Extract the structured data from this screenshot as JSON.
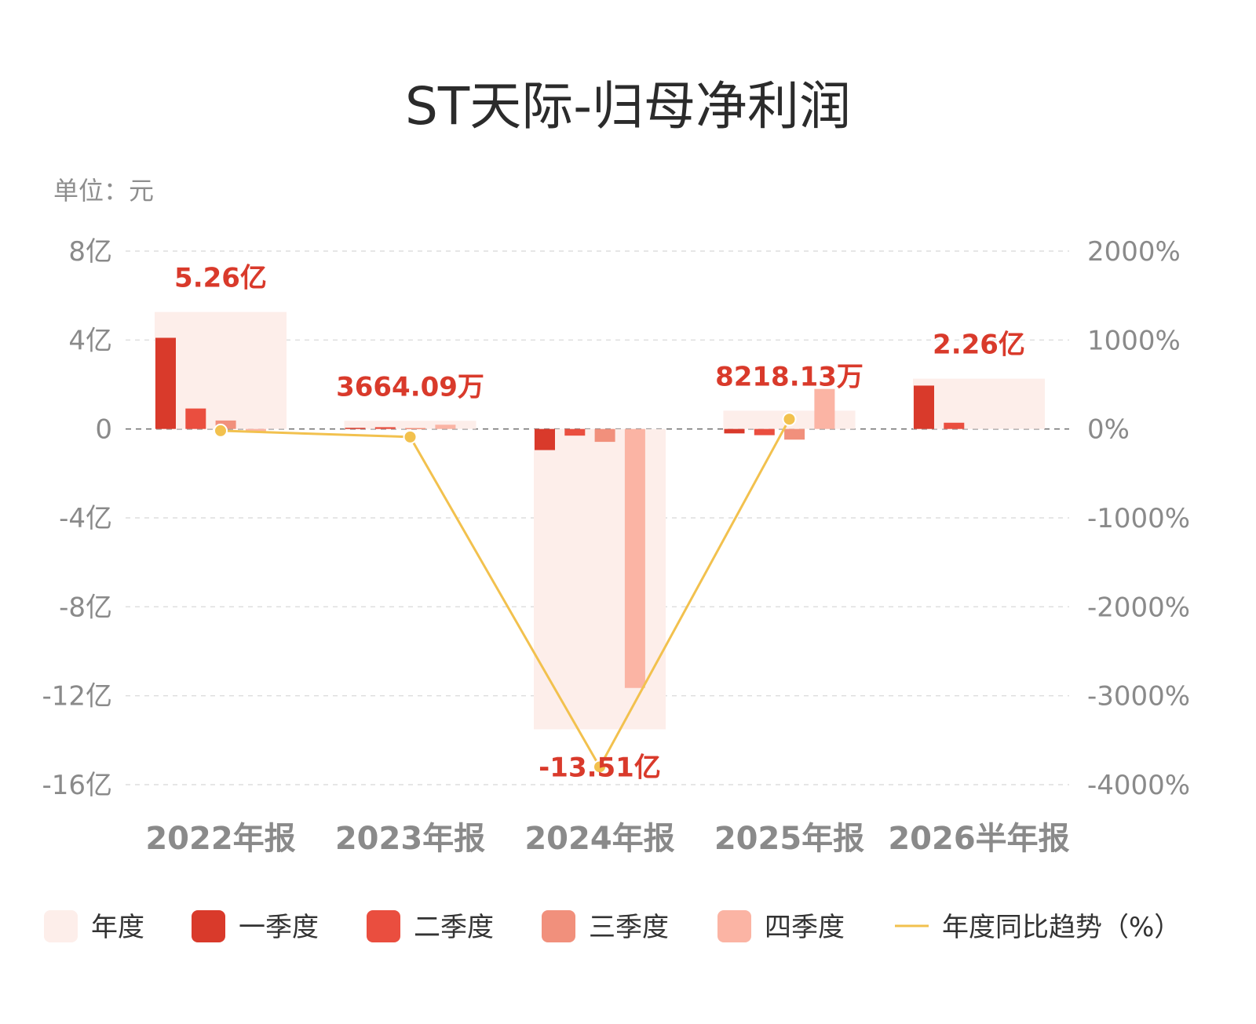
{
  "title": "ST天际-归母净利润",
  "unit_label": "单位：元",
  "chart_data": {
    "type": "bar",
    "title": "ST天际-归母净利润",
    "categories": [
      "2022年报",
      "2023年报",
      "2024年报",
      "2025年报",
      "2026半年报"
    ],
    "annual_labels": [
      "5.26亿",
      "3664.09万",
      "-13.51亿",
      "8218.13万",
      "2.26亿"
    ],
    "series": [
      {
        "name": "年度",
        "color": "#fdeeea",
        "values": [
          526000000,
          36640900,
          -1351000000,
          82181300,
          226000000
        ]
      },
      {
        "name": "一季度",
        "color": "#d93a2b",
        "values": [
          410000000,
          5000000,
          -95000000,
          -20000000,
          195000000
        ]
      },
      {
        "name": "二季度",
        "color": "#ea4e3f",
        "values": [
          92000000,
          8000000,
          -30000000,
          -28000000,
          28000000
        ]
      },
      {
        "name": "三季度",
        "color": "#f1907c",
        "values": [
          38000000,
          4000000,
          -58000000,
          -48000000,
          null
        ]
      },
      {
        "name": "四季度",
        "color": "#fbb4a4",
        "values": [
          -14000000,
          19000000,
          -1165000000,
          180000000,
          null
        ]
      }
    ],
    "line": {
      "name": "年度同比趋势（%）",
      "color": "#f2c14e",
      "values": [
        -20,
        -90,
        -3800,
        110,
        null
      ]
    },
    "y_left": {
      "ticks": [
        800000000,
        400000000,
        0,
        -400000000,
        -800000000,
        -1200000000,
        -1600000000
      ],
      "tick_labels": [
        "8亿",
        "4亿",
        "0",
        "-4亿",
        "-8亿",
        "-12亿",
        "-16亿"
      ],
      "range": [
        -1600000000,
        800000000
      ]
    },
    "y_right": {
      "ticks": [
        2000,
        1000,
        0,
        -1000,
        -2000,
        -3000,
        -4000
      ],
      "tick_labels": [
        "2000%",
        "1000%",
        "0%",
        "-1000%",
        "-2000%",
        "-3000%",
        "-4000%"
      ],
      "range": [
        -4000,
        2000
      ]
    },
    "grid": true,
    "legend_position": "bottom"
  },
  "legend": [
    {
      "label": "年度",
      "color": "#fdeeea",
      "kind": "box"
    },
    {
      "label": "一季度",
      "color": "#d93a2b",
      "kind": "box"
    },
    {
      "label": "二季度",
      "color": "#ea4e3f",
      "kind": "box"
    },
    {
      "label": "三季度",
      "color": "#f1907c",
      "kind": "box"
    },
    {
      "label": "四季度",
      "color": "#fbb4a4",
      "kind": "box"
    },
    {
      "label": "年度同比趋势（%）",
      "color": "#f2c14e",
      "kind": "line"
    }
  ]
}
